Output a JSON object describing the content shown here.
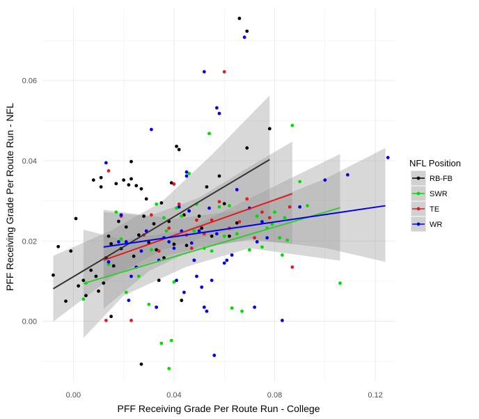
{
  "chart_data": {
    "type": "scatter",
    "title": "",
    "xlabel": "PFF Receiving Grade Per Route Run - College",
    "ylabel": "PFF Receiving Grade Per Route Run - NFL",
    "xlim": [
      -0.012,
      0.128
    ],
    "ylim": [
      -0.015,
      0.078
    ],
    "x_ticks": [
      0.0,
      0.04,
      0.08,
      0.12
    ],
    "x_tick_labels": [
      "0.00",
      "0.04",
      "0.08",
      "0.12"
    ],
    "y_ticks": [
      0.0,
      0.02,
      0.04,
      0.06
    ],
    "y_tick_labels": [
      "0.00",
      "0.02",
      "0.04",
      "0.06"
    ],
    "grid": true,
    "legend": {
      "title": "NFL Position",
      "placement": "right"
    },
    "series": [
      {
        "name": "RB-FB",
        "color": "#000000",
        "line_color": "#333333",
        "fit": {
          "x_start": -0.008,
          "y_start": 0.0081,
          "x_end": 0.078,
          "y_end": 0.0403
        },
        "band": {
          "lower": [
            [
              -0.008,
              -0.0001
            ],
            [
              0.015,
              0.0108
            ],
            [
              0.035,
              0.0177
            ],
            [
              0.055,
              0.0215
            ],
            [
              0.078,
              0.0246
            ]
          ],
          "upper": [
            [
              -0.008,
              0.0163
            ],
            [
              0.015,
              0.0226
            ],
            [
              0.035,
              0.0297
            ],
            [
              0.055,
              0.0415
            ],
            [
              0.078,
              0.0563
            ]
          ]
        },
        "points": [
          [
            -0.008,
            0.0115
          ],
          [
            -0.006,
            0.0186
          ],
          [
            -0.003,
            0.005
          ],
          [
            -0.001,
            0.0175
          ],
          [
            0.001,
            0.0256
          ],
          [
            0.002,
            0.0088
          ],
          [
            0.004,
            0.0102
          ],
          [
            0.005,
            0.0064
          ],
          [
            0.007,
            0.0127
          ],
          [
            0.008,
            0.0352
          ],
          [
            0.009,
            0.0112
          ],
          [
            0.01,
            0.0075
          ],
          [
            0.011,
            0.0335
          ],
          [
            0.011,
            0.0358
          ],
          [
            0.012,
            0.0095
          ],
          [
            0.013,
            0.0158
          ],
          [
            0.014,
            0.0212
          ],
          [
            0.015,
            0.0012
          ],
          [
            0.015,
            0.0193
          ],
          [
            0.016,
            0.0138
          ],
          [
            0.017,
            0.0343
          ],
          [
            0.018,
            0.0249
          ],
          [
            0.019,
            0.0181
          ],
          [
            0.02,
            0.0352
          ],
          [
            0.021,
            0.0235
          ],
          [
            0.022,
            0.034
          ],
          [
            0.023,
            0.0355
          ],
          [
            0.023,
            0.0398
          ],
          [
            0.024,
            0.0162
          ],
          [
            0.025,
            0.0338
          ],
          [
            0.026,
            0.0215
          ],
          [
            0.027,
            0.033
          ],
          [
            0.027,
            -0.0107
          ],
          [
            0.028,
            0.0262
          ],
          [
            0.029,
            0.0305
          ],
          [
            0.03,
            0.0196
          ],
          [
            0.032,
            0.0243
          ],
          [
            0.033,
            0.0178
          ],
          [
            0.034,
            0.0102
          ],
          [
            0.035,
            0.0295
          ],
          [
            0.036,
            0.0158
          ],
          [
            0.038,
            0.0249
          ],
          [
            0.039,
            0.0345
          ],
          [
            0.04,
            0.0192
          ],
          [
            0.041,
            0.0436
          ],
          [
            0.042,
            0.0428
          ],
          [
            0.043,
            0.0052
          ],
          [
            0.044,
            0.0265
          ],
          [
            0.045,
            0.0189
          ],
          [
            0.046,
            0.0275
          ],
          [
            0.048,
            0.0152
          ],
          [
            0.05,
            0.0262
          ],
          [
            0.051,
            0.0232
          ],
          [
            0.053,
            0.0335
          ],
          [
            0.055,
            0.0212
          ],
          [
            0.058,
            0.0362
          ],
          [
            0.06,
            0.0293
          ],
          [
            0.062,
            0.0212
          ],
          [
            0.065,
            0.0245
          ],
          [
            0.066,
            0.0755
          ],
          [
            0.069,
            0.0432
          ],
          [
            0.069,
            0.0723
          ],
          [
            0.078,
            0.048
          ]
        ]
      },
      {
        "name": "SWR",
        "color": "#00dd00",
        "line_color": "#33cc33",
        "fit": {
          "x_start": 0.004,
          "y_start": 0.0094,
          "x_end": 0.106,
          "y_end": 0.0283
        },
        "band": {
          "lower": [
            [
              0.004,
              -0.0042
            ],
            [
              0.02,
              0.0064
            ],
            [
              0.045,
              0.0136
            ],
            [
              0.07,
              0.0182
            ],
            [
              0.106,
              0.0151
            ]
          ],
          "upper": [
            [
              0.004,
              0.0228
            ],
            [
              0.02,
              0.0203
            ],
            [
              0.045,
              0.0228
            ],
            [
              0.07,
              0.0306
            ],
            [
              0.106,
              0.0417
            ]
          ]
        },
        "points": [
          [
            0.004,
            0.0055
          ],
          [
            0.005,
            0.0095
          ],
          [
            0.014,
            0.0142
          ],
          [
            0.017,
            0.0272
          ],
          [
            0.019,
            0.0205
          ],
          [
            0.021,
            0.0072
          ],
          [
            0.026,
            0.0112
          ],
          [
            0.03,
            0.0042
          ],
          [
            0.031,
            0.0178
          ],
          [
            0.033,
            0.0292
          ],
          [
            0.035,
            -0.0055
          ],
          [
            0.036,
            0.0258
          ],
          [
            0.037,
            0.0225
          ],
          [
            0.038,
            -0.0118
          ],
          [
            0.039,
            -0.0048
          ],
          [
            0.04,
            0.0098
          ],
          [
            0.041,
            0.0282
          ],
          [
            0.043,
            0.0262
          ],
          [
            0.046,
            0.0368
          ],
          [
            0.048,
            0.0225
          ],
          [
            0.049,
            0.0292
          ],
          [
            0.052,
            0.0182
          ],
          [
            0.054,
            0.0468
          ],
          [
            0.055,
            0.0175
          ],
          [
            0.058,
            0.0285
          ],
          [
            0.06,
            0.0212
          ],
          [
            0.062,
            0.0288
          ],
          [
            0.063,
            0.0033
          ],
          [
            0.065,
            0.0218
          ],
          [
            0.067,
            0.0025
          ],
          [
            0.07,
            0.0178
          ],
          [
            0.073,
            0.0262
          ],
          [
            0.075,
            0.0185
          ],
          [
            0.077,
            0.0232
          ],
          [
            0.079,
            0.0242
          ],
          [
            0.08,
            0.0272
          ],
          [
            0.082,
            0.0208
          ],
          [
            0.083,
            0.0165
          ],
          [
            0.084,
            0.0258
          ],
          [
            0.085,
            0.0202
          ],
          [
            0.087,
            0.0488
          ],
          [
            0.09,
            0.0348
          ],
          [
            0.093,
            0.0288
          ],
          [
            0.106,
            0.0095
          ]
        ]
      },
      {
        "name": "TE",
        "color": "#e41a1c",
        "line_color": "#e41a1c",
        "fit": {
          "x_start": 0.012,
          "y_start": 0.0152,
          "x_end": 0.087,
          "y_end": 0.0318
        },
        "band": {
          "lower": [
            [
              0.012,
              0.0031
            ],
            [
              0.03,
              0.0125
            ],
            [
              0.05,
              0.0185
            ],
            [
              0.07,
              0.0202
            ],
            [
              0.087,
              0.0193
            ]
          ],
          "upper": [
            [
              0.012,
              0.0272
            ],
            [
              0.03,
              0.0262
            ],
            [
              0.05,
              0.0308
            ],
            [
              0.07,
              0.0385
            ],
            [
              0.087,
              0.0448
            ]
          ]
        },
        "points": [
          [
            0.013,
            0.0002
          ],
          [
            0.014,
            0.0375
          ],
          [
            0.019,
            0.0262
          ],
          [
            0.023,
            0.0002
          ],
          [
            0.028,
            0.0215
          ],
          [
            0.031,
            0.0265
          ],
          [
            0.034,
            0.0175
          ],
          [
            0.038,
            0.0232
          ],
          [
            0.04,
            0.0342
          ],
          [
            0.042,
            0.0292
          ],
          [
            0.045,
            0.0215
          ],
          [
            0.047,
            0.0182
          ],
          [
            0.049,
            0.0252
          ],
          [
            0.052,
            0.0218
          ],
          [
            0.055,
            0.0252
          ],
          [
            0.058,
            0.0298
          ],
          [
            0.06,
            0.0622
          ],
          [
            0.062,
            0.0232
          ],
          [
            0.066,
            0.0248
          ],
          [
            0.069,
            0.0305
          ],
          [
            0.072,
            0.0208
          ],
          [
            0.075,
            0.0272
          ],
          [
            0.078,
            0.0258
          ],
          [
            0.086,
            0.0285
          ],
          [
            0.087,
            0.0135
          ]
        ]
      },
      {
        "name": "WR",
        "color": "#0000ee",
        "line_color": "#0000ee",
        "fit": {
          "x_start": 0.012,
          "y_start": 0.0185,
          "x_end": 0.124,
          "y_end": 0.0288
        },
        "band": {
          "lower": [
            [
              0.012,
              0.0105
            ],
            [
              0.04,
              0.0168
            ],
            [
              0.07,
              0.0205
            ],
            [
              0.1,
              0.0183
            ],
            [
              0.124,
              0.0148
            ]
          ],
          "upper": [
            [
              0.012,
              0.0278
            ],
            [
              0.04,
              0.0255
            ],
            [
              0.07,
              0.028
            ],
            [
              0.1,
              0.0355
            ],
            [
              0.124,
              0.0432
            ]
          ]
        },
        "points": [
          [
            0.013,
            0.0395
          ],
          [
            0.014,
            0.0148
          ],
          [
            0.018,
            0.0198
          ],
          [
            0.019,
            0.0265
          ],
          [
            0.021,
            0.0198
          ],
          [
            0.022,
            0.0052
          ],
          [
            0.023,
            0.0112
          ],
          [
            0.025,
            0.0135
          ],
          [
            0.027,
            0.0175
          ],
          [
            0.029,
            0.0225
          ],
          [
            0.031,
            0.0478
          ],
          [
            0.033,
            0.0035
          ],
          [
            0.034,
            0.0152
          ],
          [
            0.036,
            0.0208
          ],
          [
            0.038,
            0.0198
          ],
          [
            0.04,
            0.0182
          ],
          [
            0.041,
            0.0102
          ],
          [
            0.042,
            0.0285
          ],
          [
            0.043,
            0.0225
          ],
          [
            0.044,
            0.0072
          ],
          [
            0.045,
            0.0362
          ],
          [
            0.045,
            0.0372
          ],
          [
            0.046,
            0.0275
          ],
          [
            0.047,
            0.0195
          ],
          [
            0.048,
            0.0152
          ],
          [
            0.049,
            0.0112
          ],
          [
            0.05,
            0.0225
          ],
          [
            0.051,
            0.0085
          ],
          [
            0.052,
            0.0035
          ],
          [
            0.052,
            0.0622
          ],
          [
            0.053,
            0.0025
          ],
          [
            0.054,
            0.0282
          ],
          [
            0.055,
            0.0102
          ],
          [
            0.056,
            -0.0085
          ],
          [
            0.057,
            0.0218
          ],
          [
            0.057,
            0.0532
          ],
          [
            0.058,
            0.0518
          ],
          [
            0.06,
            0.0145
          ],
          [
            0.061,
            0.0152
          ],
          [
            0.063,
            0.0165
          ],
          [
            0.065,
            0.0328
          ],
          [
            0.068,
            0.0708
          ],
          [
            0.07,
            0.0282
          ],
          [
            0.072,
            0.0035
          ],
          [
            0.073,
            0.0198
          ],
          [
            0.075,
            0.0248
          ],
          [
            0.077,
            0.0208
          ],
          [
            0.083,
            0.0002
          ],
          [
            0.09,
            0.0285
          ],
          [
            0.1,
            0.0352
          ],
          [
            0.109,
            0.0365
          ],
          [
            0.125,
            0.0408
          ]
        ]
      }
    ]
  }
}
